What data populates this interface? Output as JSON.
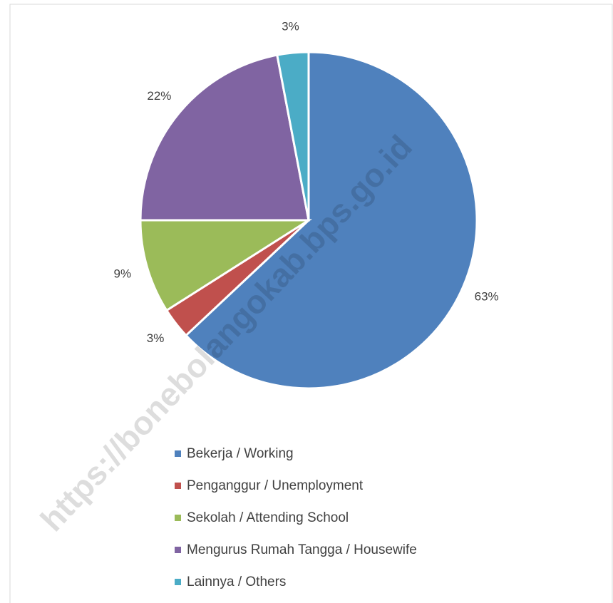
{
  "chart_data": {
    "type": "pie",
    "categories": [
      "Bekerja / Working",
      "Penganggur / Unemployment",
      "Sekolah / Attending School",
      "Mengurus Rumah Tangga / Housewife",
      "Lainnya / Others"
    ],
    "values": [
      63,
      3,
      9,
      22,
      3
    ],
    "value_labels": [
      "63%",
      "3%",
      "9%",
      "22%",
      "3%"
    ],
    "colors": [
      "#4f81bd",
      "#c0504d",
      "#9bbb59",
      "#8064a2",
      "#4bacc6"
    ],
    "legend": "bottom",
    "watermark": "https://bonebolangokab.bps.go.id"
  }
}
